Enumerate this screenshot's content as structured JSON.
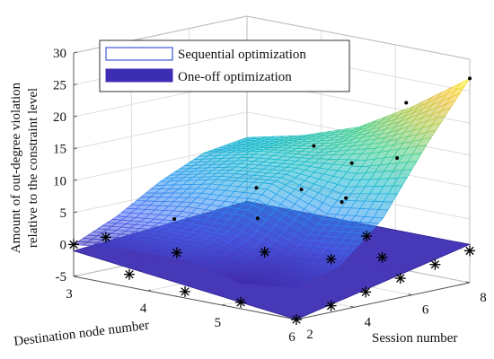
{
  "chart_data": {
    "type": "surface3d",
    "title": "",
    "xlabel": "Destination node number",
    "ylabel": "Session number",
    "zlabel": [
      "Amount of out-degree violation",
      "relative to the constraint level"
    ],
    "xlim": [
      3,
      6
    ],
    "ylim": [
      2,
      8
    ],
    "zlim": [
      -5,
      30
    ],
    "xticks": [
      "3",
      "4",
      "5",
      "6"
    ],
    "yticks": [
      "2",
      "4",
      "6",
      "8"
    ],
    "zticks": [
      "-5",
      "0",
      "5",
      "10",
      "15",
      "20",
      "25",
      "30"
    ],
    "grid": true,
    "legend_position": "top-left",
    "legend": [
      {
        "label": "Sequential optimization",
        "style": "outline",
        "color": "#4a63d8"
      },
      {
        "label": "One-off optimization",
        "style": "filled",
        "color": "#3d2db3"
      }
    ],
    "series": [
      {
        "name": "Sequential optimization",
        "kind": "mesh",
        "colormap": "parula",
        "x": [
          3,
          3.75,
          4.5,
          5.25,
          6
        ],
        "y": [
          2,
          3.5,
          5,
          6.5,
          8
        ],
        "z": [
          [
            0,
            3,
            7,
            10,
            11
          ],
          [
            1,
            4,
            9,
            12,
            13
          ],
          [
            1,
            4,
            10,
            13,
            16
          ],
          [
            -1,
            1,
            7,
            15,
            21
          ],
          [
            0,
            2,
            8,
            18,
            27
          ]
        ]
      },
      {
        "name": "One-off optimization",
        "kind": "plane",
        "color": "#3d2db3",
        "z_corners": [
          -1,
          -5,
          1,
          1
        ]
      }
    ],
    "markers": {
      "symbol": "*",
      "points": [
        {
          "x": 3.0,
          "y": 2.0,
          "z": 0
        },
        {
          "x": 3.75,
          "y": 2.0,
          "z": -3
        },
        {
          "x": 4.5,
          "y": 2.0,
          "z": -4
        },
        {
          "x": 5.25,
          "y": 2.0,
          "z": -4
        },
        {
          "x": 6.0,
          "y": 2.0,
          "z": -5
        },
        {
          "x": 6.0,
          "y": 3.2,
          "z": -4
        },
        {
          "x": 6.0,
          "y": 4.4,
          "z": -3
        },
        {
          "x": 6.0,
          "y": 5.6,
          "z": -2
        },
        {
          "x": 6.0,
          "y": 6.8,
          "z": -1
        },
        {
          "x": 6.0,
          "y": 8.0,
          "z": 0
        },
        {
          "x": 4.0,
          "y": 3.0,
          "z": 0
        },
        {
          "x": 4.6,
          "y": 4.5,
          "z": 0
        },
        {
          "x": 5.3,
          "y": 5.0,
          "z": 0
        },
        {
          "x": 5.6,
          "y": 6.0,
          "z": 0
        },
        {
          "x": 5.0,
          "y": 7.0,
          "z": 1
        },
        {
          "x": 3.2,
          "y": 2.6,
          "z": 1
        },
        {
          "x": 3.5,
          "y": 4.2,
          "z": 3
        },
        {
          "x": 4.1,
          "y": 5.5,
          "z": 8
        },
        {
          "x": 4.8,
          "y": 7.0,
          "z": 12
        },
        {
          "x": 5.3,
          "y": 7.6,
          "z": 22
        },
        {
          "x": 6.0,
          "y": 8.0,
          "z": 27
        },
        {
          "x": 5.8,
          "y": 6.0,
          "z": 16
        },
        {
          "x": 5.5,
          "y": 5.0,
          "z": 10
        },
        {
          "x": 4.7,
          "y": 4.0,
          "z": 6
        },
        {
          "x": 4.9,
          "y": 5.0,
          "z": 10
        },
        {
          "x": 5.6,
          "y": 4.6,
          "z": 10
        },
        {
          "x": 4.6,
          "y": 6.2,
          "z": 15
        }
      ]
    }
  }
}
